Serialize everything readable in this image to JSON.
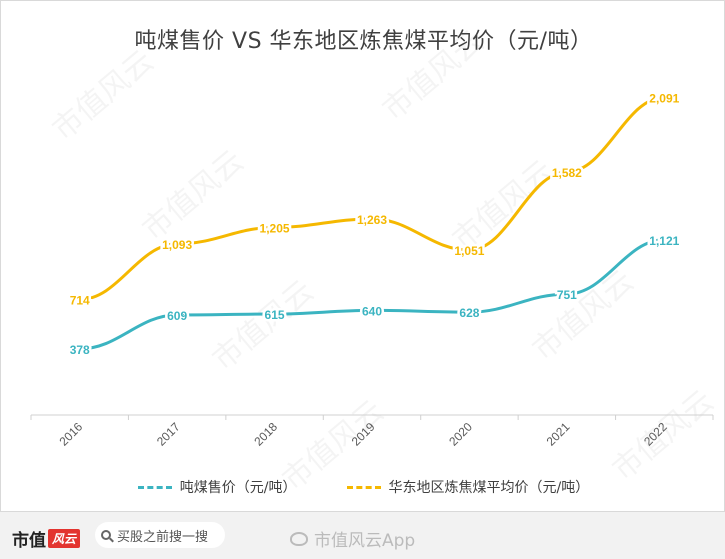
{
  "chart_data": {
    "type": "line",
    "title": "吨煤售价 VS 华东地区炼焦煤平均价（元/吨）",
    "categories": [
      "2016",
      "2017",
      "2018",
      "2019",
      "2020",
      "2021",
      "2022"
    ],
    "series": [
      {
        "name": "吨煤售价（元/吨）",
        "color": "#3bb4c1",
        "values": [
          378,
          609,
          615,
          640,
          628,
          751,
          1121
        ],
        "labels": [
          "378",
          "609",
          "615",
          "640",
          "628",
          "751",
          "1,121"
        ]
      },
      {
        "name": "华东地区炼焦煤平均价（元/吨）",
        "color": "#f5b800",
        "values": [
          714,
          1093,
          1205,
          1263,
          1051,
          1582,
          2091
        ],
        "labels": [
          "714",
          "1,093",
          "1,205",
          "1,263",
          "1,051",
          "1,582",
          "2,091"
        ]
      }
    ],
    "ylim": [
      0,
      2300
    ],
    "grid": false,
    "legend_position": "bottom"
  },
  "watermark": "市值风云",
  "footer": {
    "brand": "市值",
    "brand_logo": "风云",
    "search_text": "买股之前搜一搜",
    "weibo_text": "市值风云App"
  }
}
